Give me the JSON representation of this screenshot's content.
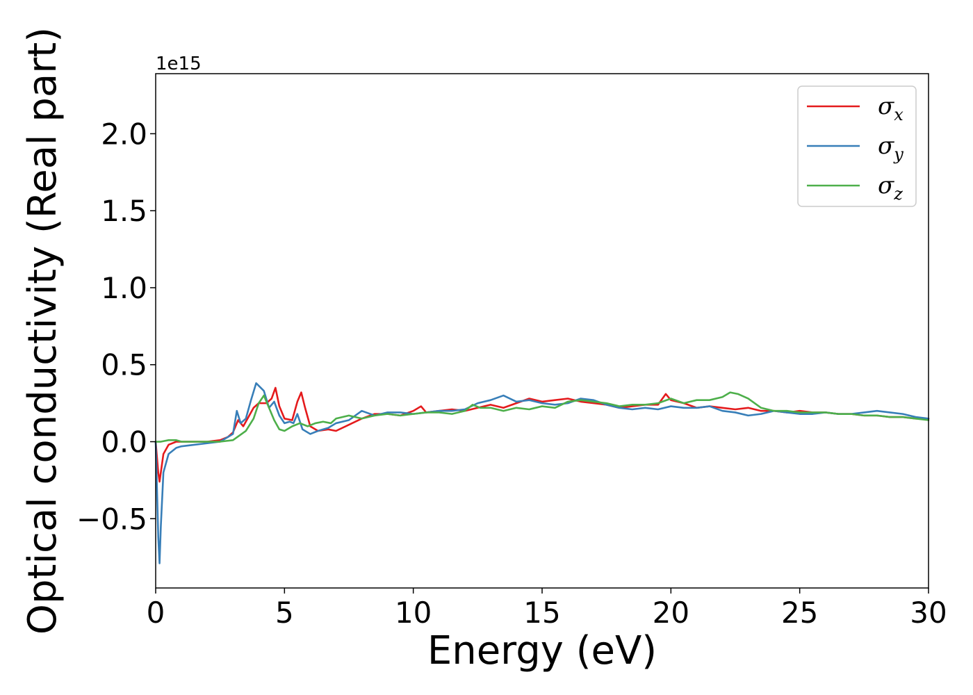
{
  "chart_data": {
    "type": "line",
    "xlabel": "Energy (eV)",
    "ylabel": "Optical conductivity (Real part)",
    "y_offset_label": "1e15",
    "xlim": [
      0,
      30
    ],
    "ylim": [
      -0.95,
      2.39
    ],
    "xticks": [
      0,
      5,
      10,
      15,
      20,
      25,
      30
    ],
    "xtick_labels": [
      "0",
      "5",
      "10",
      "15",
      "20",
      "25",
      "30"
    ],
    "yticks": [
      -0.5,
      0.0,
      0.5,
      1.0,
      1.5,
      2.0
    ],
    "ytick_labels": [
      "−0.5",
      "0.0",
      "0.5",
      "1.0",
      "1.5",
      "2.0"
    ],
    "grid": false,
    "legend_position": "top-right",
    "series": [
      {
        "name": "σ",
        "subscript": "x",
        "color": "#e41a1c",
        "x": [
          0.0,
          0.1,
          0.15,
          0.2,
          0.3,
          0.5,
          0.8,
          1.0,
          1.5,
          2.0,
          2.5,
          2.8,
          3.0,
          3.2,
          3.4,
          3.6,
          3.8,
          4.0,
          4.3,
          4.5,
          4.65,
          4.8,
          5.0,
          5.3,
          5.5,
          5.65,
          5.8,
          6.0,
          6.3,
          6.7,
          7.0,
          7.5,
          8.0,
          8.5,
          9.0,
          9.5,
          10.0,
          10.3,
          10.5,
          11.0,
          11.5,
          12.0,
          12.5,
          13.0,
          13.5,
          14.0,
          14.5,
          15.0,
          15.5,
          16.0,
          16.5,
          17.0,
          17.5,
          18.0,
          18.5,
          19.0,
          19.5,
          19.8,
          20.0,
          20.5,
          21.0,
          21.5,
          22.0,
          22.5,
          23.0,
          23.5,
          24.0,
          24.5,
          25.0,
          25.5,
          26.0,
          26.5,
          27.0,
          27.5,
          28.0,
          28.5,
          29.0,
          29.5,
          30.0
        ],
        "y": [
          0.0,
          -0.2,
          -0.26,
          -0.2,
          -0.08,
          -0.02,
          0.0,
          0.0,
          0.0,
          0.0,
          0.01,
          0.03,
          0.06,
          0.14,
          0.1,
          0.16,
          0.22,
          0.25,
          0.25,
          0.28,
          0.35,
          0.23,
          0.15,
          0.14,
          0.26,
          0.32,
          0.22,
          0.1,
          0.07,
          0.08,
          0.07,
          0.11,
          0.15,
          0.18,
          0.18,
          0.17,
          0.2,
          0.23,
          0.19,
          0.2,
          0.21,
          0.2,
          0.22,
          0.24,
          0.22,
          0.25,
          0.28,
          0.26,
          0.27,
          0.28,
          0.26,
          0.25,
          0.24,
          0.22,
          0.23,
          0.24,
          0.24,
          0.31,
          0.27,
          0.25,
          0.22,
          0.23,
          0.22,
          0.21,
          0.22,
          0.2,
          0.2,
          0.19,
          0.2,
          0.19,
          0.19,
          0.18,
          0.18,
          0.17,
          0.17,
          0.16,
          0.16,
          0.15,
          0.15
        ]
      },
      {
        "name": "σ",
        "subscript": "y",
        "color": "#377eb8",
        "x": [
          0.0,
          0.05,
          0.1,
          0.15,
          0.2,
          0.3,
          0.5,
          0.8,
          1.0,
          1.5,
          2.0,
          2.5,
          2.8,
          3.0,
          3.15,
          3.3,
          3.5,
          3.7,
          3.9,
          4.2,
          4.4,
          4.6,
          4.8,
          5.0,
          5.2,
          5.35,
          5.5,
          5.7,
          6.0,
          6.3,
          6.7,
          7.0,
          7.5,
          8.0,
          8.5,
          9.0,
          9.5,
          10.0,
          10.5,
          11.0,
          11.5,
          12.0,
          12.5,
          13.0,
          13.5,
          14.0,
          14.5,
          15.0,
          15.5,
          16.0,
          16.5,
          17.0,
          17.5,
          18.0,
          18.5,
          19.0,
          19.5,
          20.0,
          20.5,
          21.0,
          21.5,
          22.0,
          22.5,
          23.0,
          23.5,
          24.0,
          24.5,
          25.0,
          25.5,
          26.0,
          26.5,
          27.0,
          27.5,
          28.0,
          28.5,
          29.0,
          29.5,
          30.0
        ],
        "y": [
          0.0,
          -0.3,
          -0.62,
          -0.79,
          -0.55,
          -0.2,
          -0.08,
          -0.04,
          -0.03,
          -0.02,
          -0.01,
          0.0,
          0.03,
          0.05,
          0.2,
          0.12,
          0.15,
          0.27,
          0.38,
          0.33,
          0.22,
          0.26,
          0.17,
          0.12,
          0.13,
          0.12,
          0.18,
          0.08,
          0.05,
          0.07,
          0.09,
          0.12,
          0.14,
          0.2,
          0.17,
          0.19,
          0.19,
          0.18,
          0.19,
          0.2,
          0.2,
          0.21,
          0.25,
          0.27,
          0.3,
          0.26,
          0.27,
          0.25,
          0.24,
          0.25,
          0.28,
          0.27,
          0.24,
          0.22,
          0.21,
          0.22,
          0.21,
          0.23,
          0.22,
          0.22,
          0.23,
          0.2,
          0.19,
          0.17,
          0.18,
          0.2,
          0.19,
          0.18,
          0.18,
          0.19,
          0.18,
          0.18,
          0.19,
          0.2,
          0.19,
          0.18,
          0.16,
          0.15
        ]
      },
      {
        "name": "σ",
        "subscript": "z",
        "color": "#4daf4a",
        "x": [
          0.0,
          0.2,
          0.5,
          0.8,
          1.0,
          1.5,
          2.0,
          2.5,
          3.0,
          3.5,
          3.8,
          4.0,
          4.2,
          4.4,
          4.6,
          4.8,
          5.0,
          5.3,
          5.6,
          5.9,
          6.2,
          6.5,
          6.8,
          7.0,
          7.5,
          8.0,
          8.5,
          9.0,
          9.5,
          10.0,
          10.5,
          11.0,
          11.5,
          12.0,
          12.3,
          12.6,
          13.0,
          13.5,
          14.0,
          14.5,
          15.0,
          15.5,
          16.0,
          16.5,
          17.0,
          17.5,
          18.0,
          18.5,
          19.0,
          19.5,
          20.0,
          20.5,
          21.0,
          21.5,
          22.0,
          22.3,
          22.6,
          23.0,
          23.5,
          24.0,
          24.5,
          25.0,
          25.5,
          26.0,
          26.5,
          27.0,
          27.5,
          28.0,
          28.5,
          29.0,
          29.5,
          30.0
        ],
        "y": [
          0.0,
          0.0,
          0.01,
          0.01,
          0.0,
          0.0,
          0.0,
          0.0,
          0.01,
          0.07,
          0.15,
          0.25,
          0.3,
          0.22,
          0.14,
          0.08,
          0.07,
          0.1,
          0.12,
          0.1,
          0.12,
          0.13,
          0.12,
          0.15,
          0.17,
          0.15,
          0.17,
          0.18,
          0.17,
          0.18,
          0.19,
          0.19,
          0.18,
          0.2,
          0.24,
          0.22,
          0.22,
          0.2,
          0.22,
          0.21,
          0.23,
          0.22,
          0.26,
          0.27,
          0.26,
          0.25,
          0.23,
          0.24,
          0.24,
          0.25,
          0.28,
          0.25,
          0.27,
          0.27,
          0.29,
          0.32,
          0.31,
          0.28,
          0.22,
          0.2,
          0.2,
          0.19,
          0.19,
          0.19,
          0.18,
          0.18,
          0.17,
          0.17,
          0.16,
          0.16,
          0.15,
          0.14
        ]
      }
    ]
  }
}
